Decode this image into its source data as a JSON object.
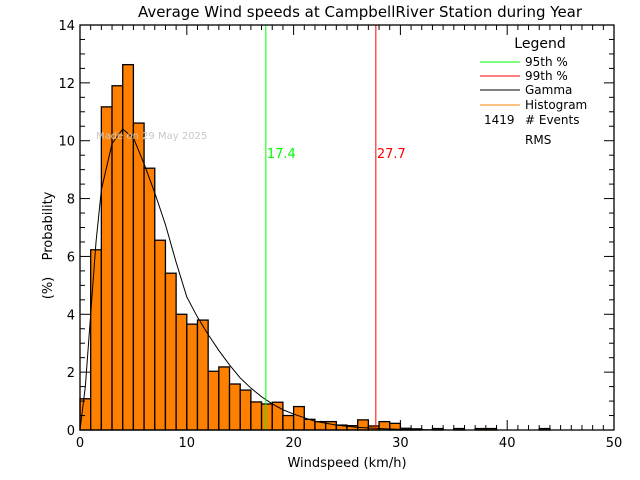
{
  "chart_data": {
    "type": "bar",
    "title": "Average Wind speeds at CampbellRiver Station during Year",
    "xlabel": "Windspeed (km/h)",
    "ylabel": "Probability",
    "ylabel_unit": "(%)",
    "xlim": [
      0,
      50
    ],
    "ylim": [
      0,
      14
    ],
    "x_ticks": [
      "0",
      "10",
      "20",
      "30",
      "40",
      "50"
    ],
    "y_ticks": [
      "0",
      "2",
      "4",
      "6",
      "8",
      "10",
      "12",
      "14"
    ],
    "grid": false,
    "watermark": "Made on 29 May 2025",
    "histogram": {
      "bin_edges_start": [
        0,
        1,
        2,
        3,
        4,
        5,
        6,
        7,
        8,
        9,
        10,
        11,
        12,
        13,
        14,
        15,
        16,
        17,
        18,
        19,
        20,
        21,
        22,
        23,
        24,
        25,
        26,
        27,
        28,
        29,
        30,
        31,
        33,
        35,
        37,
        38,
        43
      ],
      "bin_width": 1,
      "values": [
        1.08,
        6.23,
        11.17,
        11.9,
        12.63,
        10.61,
        9.05,
        6.56,
        5.42,
        4.0,
        3.66,
        3.8,
        2.03,
        2.18,
        1.59,
        1.38,
        0.97,
        0.9,
        0.96,
        0.5,
        0.81,
        0.37,
        0.29,
        0.29,
        0.17,
        0.15,
        0.35,
        0.14,
        0.29,
        0.23,
        0.06,
        0.04,
        0.05,
        0.05,
        0.05,
        0.05,
        0.05
      ],
      "color": "#ff8000"
    },
    "gamma_curve": {
      "x": [
        0,
        0.5,
        1,
        1.5,
        2,
        3,
        4,
        5,
        6,
        7,
        8,
        9,
        10,
        11,
        12,
        13,
        14,
        15,
        16,
        17,
        18,
        19,
        20,
        22,
        24,
        26,
        28,
        30,
        35
      ],
      "y": [
        0,
        1.5,
        4,
        6.5,
        8.3,
        9.9,
        10.4,
        10.1,
        9.2,
        8.2,
        7.1,
        5.8,
        4.6,
        3.9,
        3.3,
        2.75,
        2.25,
        1.8,
        1.45,
        1.15,
        0.9,
        0.7,
        0.55,
        0.3,
        0.17,
        0.09,
        0.05,
        0.02,
        0
      ],
      "color": "#000000"
    },
    "percentile_95": {
      "value": 17.4,
      "label": "17.4",
      "color": "#00ff00"
    },
    "percentile_99": {
      "value": 27.7,
      "label": "27.7",
      "color": "#ff0000"
    },
    "legend": {
      "title": "Legend",
      "placement": "top-right",
      "entries": [
        {
          "label": "95th %",
          "color": "#00ff00"
        },
        {
          "label": "99th %",
          "color": "#ff0000"
        },
        {
          "label": "Gamma",
          "color": "#000000"
        },
        {
          "label": "Histogram",
          "color": "#ff8000"
        }
      ],
      "events_count": "1419",
      "events_label": "# Events",
      "rms_label": "RMS"
    }
  }
}
